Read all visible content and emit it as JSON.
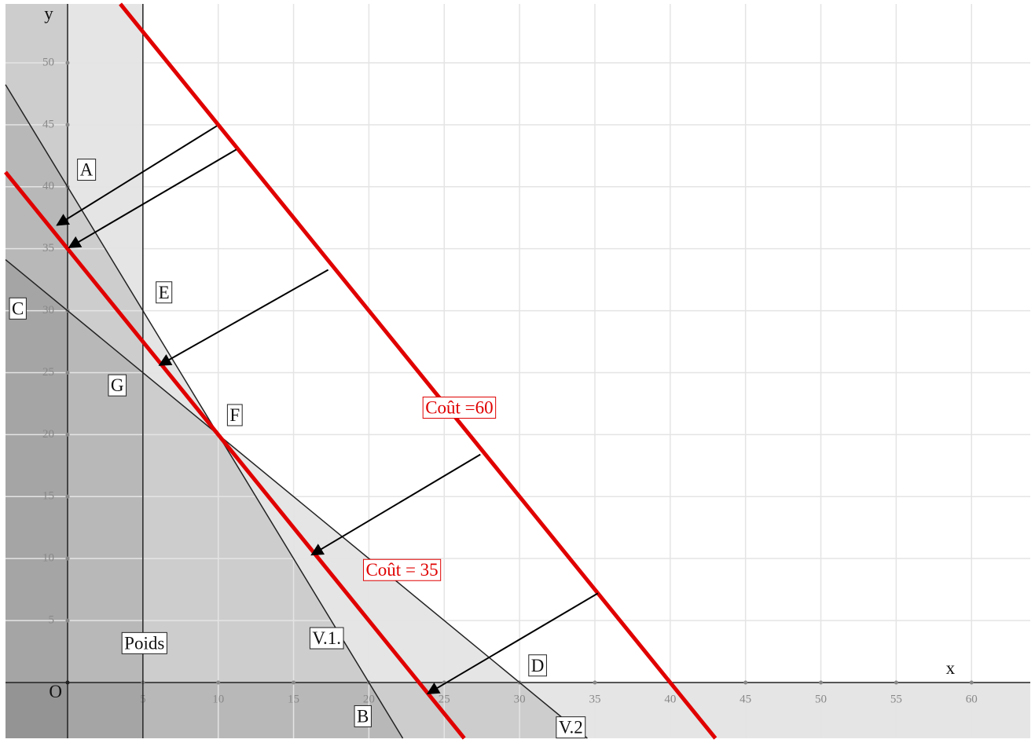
{
  "chart_data": {
    "type": "lp-graph",
    "xlim": [
      -4.12,
      63.9
    ],
    "ylim": [
      -4.5,
      54.75
    ],
    "xticks": [
      5,
      10,
      15,
      20,
      25,
      30,
      35,
      40,
      45,
      50,
      55,
      60
    ],
    "yticks": [
      5,
      10,
      15,
      20,
      25,
      30,
      35,
      40,
      45,
      50
    ],
    "grid": true,
    "series": [
      {
        "color": "#222222",
        "x": [
          -4.12,
          22.25
        ],
        "values": [
          48.24,
          -4.5
        ]
      },
      {
        "color": "#222222",
        "x": [
          -4.12,
          34.5
        ],
        "values": [
          34.12,
          -4.5
        ]
      },
      {
        "color": "#222222",
        "x": [
          5,
          5
        ],
        "values": [
          54.75,
          -4.5
        ]
      },
      {
        "color": "#e00000",
        "x": [
          -4.12,
          26.33
        ],
        "values": [
          41.18,
          -4.5
        ]
      },
      {
        "color": "#e00000",
        "x": [
          3.5,
          43
        ],
        "values": [
          54.75,
          -4.5
        ]
      }
    ],
    "arrows": [
      {
        "x": [
          9.9,
          -0.7
        ],
        "values": [
          44.9,
          36.9
        ]
      },
      {
        "x": [
          11.2,
          0.1
        ],
        "values": [
          43.0,
          35.1
        ]
      },
      {
        "x": [
          17.3,
          6.1
        ],
        "values": [
          33.3,
          25.6
        ]
      },
      {
        "x": [
          27.4,
          16.2
        ],
        "values": [
          18.4,
          10.3
        ]
      },
      {
        "x": [
          35.2,
          23.9
        ],
        "values": [
          7.2,
          -0.9
        ]
      }
    ],
    "annotations": [
      {
        "text": "A",
        "x": 1.25,
        "y": 41.3,
        "box": "#222222"
      },
      {
        "text": "E",
        "x": 6.4,
        "y": 31.4,
        "box": "#222222"
      },
      {
        "text": "C",
        "x": -3.3,
        "y": 30.1,
        "box": "#222222"
      },
      {
        "text": "G",
        "x": 3.3,
        "y": 23.9,
        "box": "#222222"
      },
      {
        "text": "F",
        "x": 11.1,
        "y": 21.5,
        "box": "#222222"
      },
      {
        "text": "D",
        "x": 31.2,
        "y": 1.3,
        "box": "#222222"
      },
      {
        "text": "B",
        "x": 19.6,
        "y": -2.8,
        "box": "#222222"
      },
      {
        "text": "V.2",
        "x": 33.4,
        "y": -3.7,
        "box": "#222222"
      },
      {
        "text": "V.1.",
        "x": 17.2,
        "y": 3.5,
        "box": "#222222"
      },
      {
        "text": "Poids",
        "x": 5.1,
        "y": 3.1,
        "box": "#222222"
      },
      {
        "text": "Coût =60",
        "x": 26.0,
        "y": 22.1,
        "box": "#e00000"
      },
      {
        "text": "Coût = 35",
        "x": 22.2,
        "y": 9.0,
        "box": "#e00000"
      },
      {
        "text": "O",
        "x": -0.8,
        "y": -0.8
      },
      {
        "text": "x",
        "x": 58.6,
        "y": 1.1
      },
      {
        "text": "y",
        "x": -1.25,
        "y": 53.9
      }
    ]
  }
}
